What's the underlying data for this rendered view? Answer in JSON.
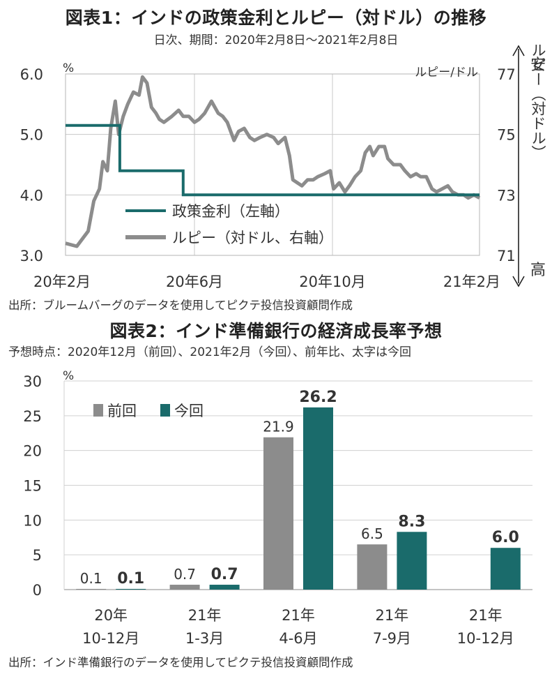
{
  "chart_data": [
    {
      "type": "line",
      "title": "図表1：インドの政策金利とルピー（対ドル）の推移",
      "subtitle": "日次、期間：2020年2月8日～2021年2月8日",
      "source": "出所：ブルームバーグのデータを使用してピクテ投信投資顧問作成",
      "y_left": {
        "unit": "%",
        "ticks": [
          "6.0",
          "5.0",
          "4.0",
          "3.0"
        ],
        "ylim": [
          3.0,
          6.0
        ]
      },
      "y_right": {
        "label": "ルピー/ドル",
        "ticks": [
          "77",
          "75",
          "73",
          "71"
        ],
        "ylim": [
          71,
          77
        ],
        "inverted_axis_label": "ルピー（対ドル）",
        "top_label": "安",
        "bottom_label": "高"
      },
      "x_ticks": [
        "20年2月",
        "20年6月",
        "20年10月",
        "21年2月"
      ],
      "x_range": [
        "2020-02-08",
        "2021-02-08"
      ],
      "legend_location": "lower-center",
      "grid": true,
      "series": [
        {
          "name": "政策金利（左軸）",
          "axis": "left",
          "color": "#1a6b6b",
          "points": [
            [
              "2020-02-08",
              5.15
            ],
            [
              "2020-03-27",
              5.15
            ],
            [
              "2020-03-27",
              4.4
            ],
            [
              "2020-05-22",
              4.4
            ],
            [
              "2020-05-22",
              4.0
            ],
            [
              "2021-02-08",
              4.0
            ]
          ]
        },
        {
          "name": "ルピー（対ドル、右軸）",
          "axis": "right",
          "color": "#8c8c8c",
          "points": [
            [
              "2020-02-08",
              71.4
            ],
            [
              "2020-02-18",
              71.3
            ],
            [
              "2020-02-28",
              71.8
            ],
            [
              "2020-03-04",
              72.8
            ],
            [
              "2020-03-09",
              73.2
            ],
            [
              "2020-03-12",
              74.1
            ],
            [
              "2020-03-16",
              73.8
            ],
            [
              "2020-03-19",
              75.2
            ],
            [
              "2020-03-23",
              76.1
            ],
            [
              "2020-03-26",
              75.0
            ],
            [
              "2020-03-30",
              75.6
            ],
            [
              "2020-04-03",
              76.0
            ],
            [
              "2020-04-08",
              76.4
            ],
            [
              "2020-04-13",
              76.3
            ],
            [
              "2020-04-16",
              76.9
            ],
            [
              "2020-04-20",
              76.7
            ],
            [
              "2020-04-24",
              75.9
            ],
            [
              "2020-04-28",
              75.7
            ],
            [
              "2020-05-01",
              75.5
            ],
            [
              "2020-05-05",
              75.4
            ],
            [
              "2020-05-12",
              75.6
            ],
            [
              "2020-05-18",
              75.8
            ],
            [
              "2020-05-22",
              75.6
            ],
            [
              "2020-05-27",
              75.6
            ],
            [
              "2020-06-01",
              75.4
            ],
            [
              "2020-06-05",
              75.5
            ],
            [
              "2020-06-10",
              75.7
            ],
            [
              "2020-06-16",
              76.1
            ],
            [
              "2020-06-22",
              75.7
            ],
            [
              "2020-06-26",
              75.6
            ],
            [
              "2020-06-30",
              75.4
            ],
            [
              "2020-07-06",
              74.8
            ],
            [
              "2020-07-10",
              75.1
            ],
            [
              "2020-07-15",
              75.2
            ],
            [
              "2020-07-20",
              74.9
            ],
            [
              "2020-07-24",
              74.8
            ],
            [
              "2020-07-29",
              74.9
            ],
            [
              "2020-08-04",
              75.0
            ],
            [
              "2020-08-10",
              74.9
            ],
            [
              "2020-08-14",
              74.7
            ],
            [
              "2020-08-20",
              74.9
            ],
            [
              "2020-08-24",
              74.3
            ],
            [
              "2020-08-27",
              73.5
            ],
            [
              "2020-08-31",
              73.4
            ],
            [
              "2020-09-04",
              73.3
            ],
            [
              "2020-09-09",
              73.5
            ],
            [
              "2020-09-14",
              73.5
            ],
            [
              "2020-09-18",
              73.6
            ],
            [
              "2020-09-24",
              73.7
            ],
            [
              "2020-09-29",
              73.8
            ],
            [
              "2020-10-02",
              73.2
            ],
            [
              "2020-10-07",
              73.4
            ],
            [
              "2020-10-12",
              73.1
            ],
            [
              "2020-10-16",
              73.3
            ],
            [
              "2020-10-21",
              73.6
            ],
            [
              "2020-10-26",
              73.8
            ],
            [
              "2020-10-30",
              74.4
            ],
            [
              "2020-11-03",
              74.6
            ],
            [
              "2020-11-06",
              74.3
            ],
            [
              "2020-11-11",
              74.6
            ],
            [
              "2020-11-16",
              74.6
            ],
            [
              "2020-11-19",
              74.2
            ],
            [
              "2020-11-24",
              74.0
            ],
            [
              "2020-11-30",
              74.0
            ],
            [
              "2020-12-04",
              73.8
            ],
            [
              "2020-12-09",
              73.6
            ],
            [
              "2020-12-14",
              73.7
            ],
            [
              "2020-12-18",
              73.6
            ],
            [
              "2020-12-23",
              73.6
            ],
            [
              "2020-12-28",
              73.2
            ],
            [
              "2021-01-01",
              73.1
            ],
            [
              "2021-01-06",
              73.2
            ],
            [
              "2021-01-11",
              73.3
            ],
            [
              "2021-01-15",
              73.1
            ],
            [
              "2021-01-20",
              73.0
            ],
            [
              "2021-01-25",
              73.0
            ],
            [
              "2021-01-29",
              72.9
            ],
            [
              "2021-02-03",
              73.0
            ],
            [
              "2021-02-08",
              72.9
            ]
          ]
        }
      ]
    },
    {
      "type": "bar",
      "title": "図表2：インド準備銀行の経済成長率予想",
      "subtitle": "予想時点：2020年12月（前回）、2021年2月（今回）、前年比、太字は今回",
      "source": "出所：インド準備銀行のデータを使用してピクテ投信投資顧問作成",
      "y_unit": "%",
      "ylim": [
        0,
        30
      ],
      "yticks": [
        "30",
        "25",
        "20",
        "15",
        "10",
        "5",
        "0"
      ],
      "grid": true,
      "legend_location": "top-left",
      "categories": [
        [
          "20年",
          "10-12月"
        ],
        [
          "21年",
          "1-3月"
        ],
        [
          "21年",
          "4-6月"
        ],
        [
          "21年",
          "7-9月"
        ],
        [
          "21年",
          "10-12月"
        ]
      ],
      "series": [
        {
          "name": "前回",
          "color": "#8c8c8c",
          "values": [
            0.1,
            0.7,
            21.9,
            6.5,
            null
          ],
          "labels": [
            "0.1",
            "0.7",
            "21.9",
            "6.5",
            ""
          ]
        },
        {
          "name": "今回",
          "color": "#1a6b6b",
          "values": [
            0.1,
            0.7,
            26.2,
            8.3,
            6.0
          ],
          "labels": [
            "0.1",
            "0.7",
            "26.2",
            "8.3",
            "6.0"
          ]
        }
      ]
    }
  ]
}
